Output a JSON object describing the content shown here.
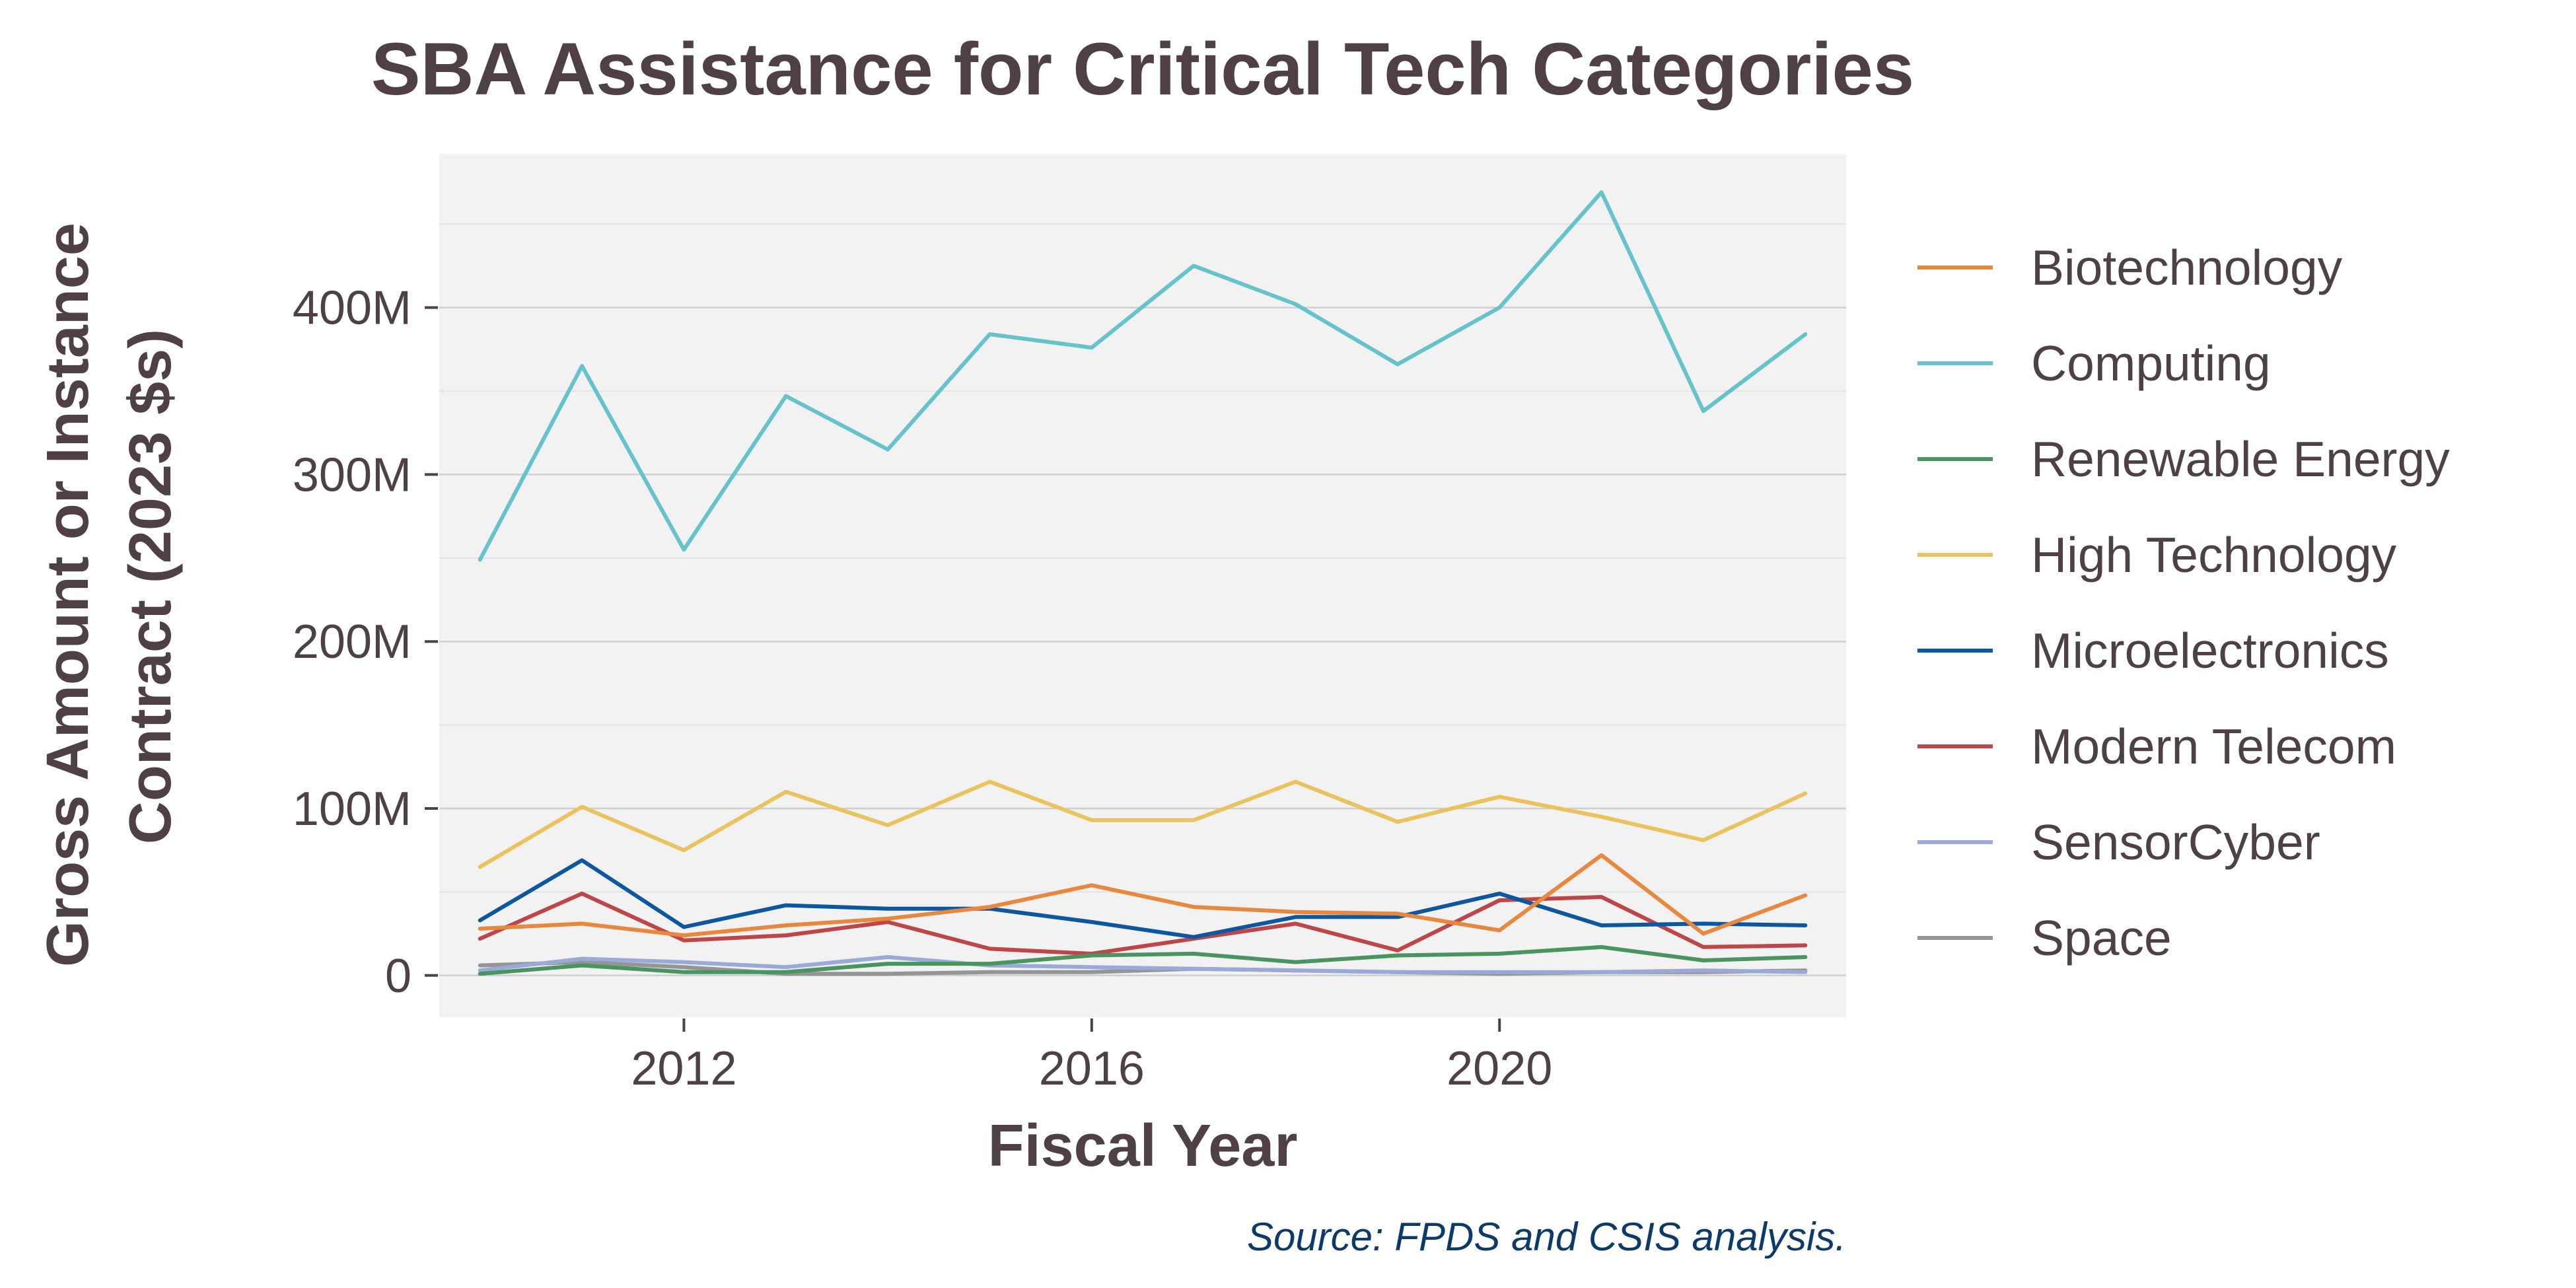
{
  "chart_data": {
    "type": "line",
    "title": "SBA Assistance for Critical Tech Categories",
    "xlabel": "Fiscal Year",
    "ylabel_lines": [
      "Gross Amount or Instance",
      "Contract (2023 $s)"
    ],
    "caption": "Source: FPDS and CSIS analysis.",
    "xlim": [
      2009.6,
      2023.4
    ],
    "ylim": [
      -25,
      492
    ],
    "x_ticks": [
      2012,
      2016,
      2020
    ],
    "x_tick_labels": [
      "2012",
      "2016",
      "2020"
    ],
    "y_ticks": [
      0,
      100,
      200,
      300,
      400
    ],
    "y_tick_labels": [
      "0",
      "100M",
      "200M",
      "300M",
      "400M"
    ],
    "y_unit": "millions of 2023 dollars",
    "grid": true,
    "legend_position": "right",
    "x": [
      2010,
      2011,
      2012,
      2013,
      2014,
      2015,
      2016,
      2017,
      2018,
      2019,
      2020,
      2021,
      2022,
      2023
    ],
    "series": [
      {
        "name": "Biotechnology",
        "color": "#e8883e",
        "values": [
          28,
          31,
          24,
          30,
          34,
          41,
          54,
          41,
          38,
          37,
          27,
          72,
          25,
          48
        ]
      },
      {
        "name": "Computing",
        "color": "#66c3cb",
        "values": [
          249,
          365,
          255,
          347,
          315,
          384,
          376,
          425,
          402,
          366,
          400,
          469,
          338,
          384
        ]
      },
      {
        "name": "Renewable Energy",
        "color": "#4a9460",
        "values": [
          1,
          6,
          2,
          2,
          7,
          7,
          12,
          13,
          8,
          12,
          13,
          17,
          9,
          11
        ]
      },
      {
        "name": "High Technology",
        "color": "#eac35f",
        "values": [
          65,
          101,
          75,
          110,
          90,
          116,
          93,
          93,
          116,
          92,
          107,
          95,
          81,
          109
        ]
      },
      {
        "name": "Microelectronics",
        "color": "#0d56a0",
        "values": [
          33,
          69,
          29,
          42,
          40,
          40,
          32,
          23,
          35,
          35,
          49,
          30,
          31,
          30
        ]
      },
      {
        "name": "Modern Telecom",
        "color": "#be4648",
        "values": [
          22,
          49,
          21,
          24,
          32,
          16,
          13,
          22,
          31,
          15,
          45,
          47,
          17,
          18
        ]
      },
      {
        "name": "SensorCyber",
        "color": "#99aad8",
        "values": [
          3,
          10,
          8,
          5,
          11,
          6,
          5,
          4,
          3,
          2,
          2,
          2,
          3,
          2
        ]
      },
      {
        "name": "Space",
        "color": "#959595",
        "values": [
          6,
          8,
          5,
          1,
          1,
          2,
          2,
          4,
          3,
          2,
          1,
          2,
          2,
          3
        ]
      }
    ]
  }
}
